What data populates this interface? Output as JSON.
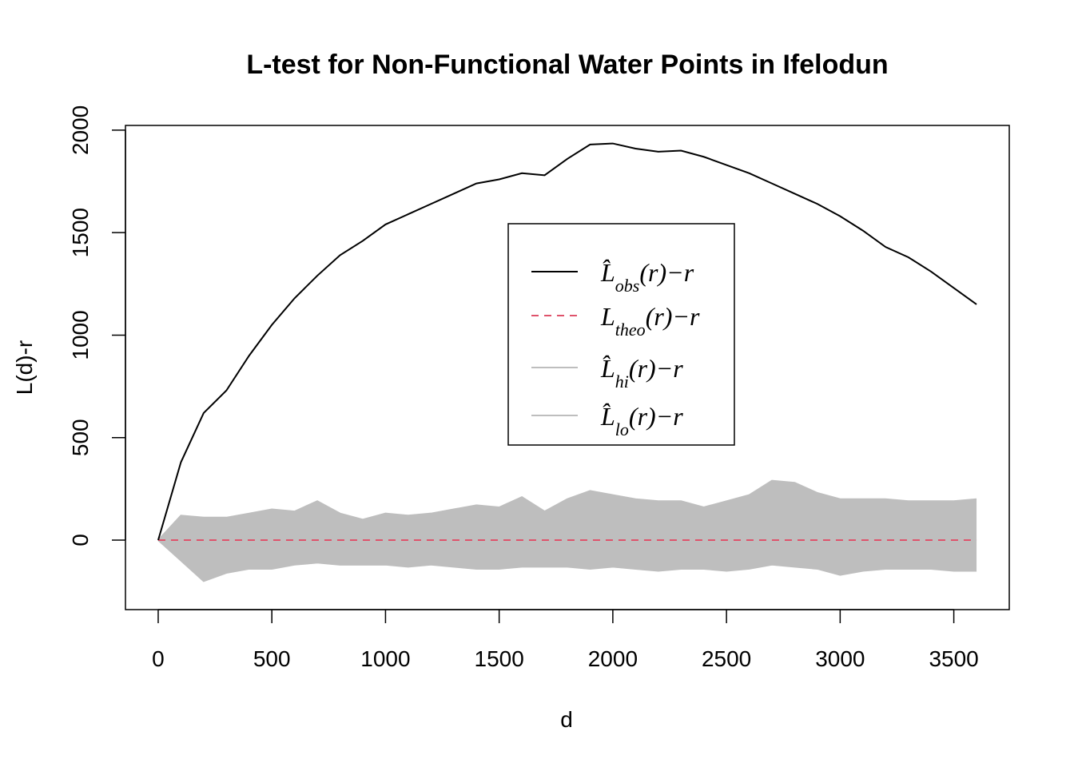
{
  "chart_data": {
    "type": "line",
    "title": "L-test for Non-Functional Water Points in Ifelodun",
    "x_label": "d",
    "y_label": "L(d)-r",
    "x": [
      0,
      100,
      200,
      300,
      400,
      500,
      600,
      700,
      800,
      900,
      1000,
      1100,
      1200,
      1300,
      1400,
      1500,
      1600,
      1700,
      1800,
      1900,
      2000,
      2100,
      2200,
      2300,
      2400,
      2500,
      2600,
      2700,
      2800,
      2900,
      3000,
      3100,
      3200,
      3300,
      3400,
      3500,
      3600
    ],
    "series": [
      {
        "name": "L̂obs(r)−r",
        "color": "#000000",
        "dash": "solid",
        "values": [
          0,
          380,
          620,
          730,
          900,
          1050,
          1180,
          1290,
          1390,
          1460,
          1540,
          1590,
          1640,
          1690,
          1740,
          1760,
          1790,
          1780,
          1860,
          1930,
          1935,
          1910,
          1895,
          1900,
          1870,
          1830,
          1790,
          1740,
          1690,
          1640,
          1580,
          1510,
          1430,
          1380,
          1310,
          1230,
          1150
        ]
      },
      {
        "name": "Ltheo(r)−r",
        "color": "#DF536B",
        "dash": "dashed",
        "values": [
          0,
          0,
          0,
          0,
          0,
          0,
          0,
          0,
          0,
          0,
          0,
          0,
          0,
          0,
          0,
          0,
          0,
          0,
          0,
          0,
          0,
          0,
          0,
          0,
          0,
          0,
          0,
          0,
          0,
          0,
          0,
          0,
          0,
          0,
          0,
          0,
          0
        ]
      },
      {
        "name": "L̂hi(r)−r",
        "color": "#BEBEBE",
        "dash": "solid",
        "area": true,
        "values": [
          0,
          120,
          110,
          110,
          130,
          150,
          140,
          190,
          130,
          100,
          130,
          120,
          130,
          150,
          170,
          160,
          210,
          140,
          200,
          240,
          220,
          200,
          190,
          190,
          160,
          190,
          220,
          290,
          280,
          230,
          200,
          200,
          200,
          190,
          190,
          190,
          200
        ]
      },
      {
        "name": "L̂lo(r)−r",
        "color": "#BEBEBE",
        "dash": "solid",
        "area": true,
        "values": [
          0,
          -100,
          -200,
          -160,
          -140,
          -140,
          -120,
          -110,
          -120,
          -120,
          -120,
          -130,
          -120,
          -130,
          -140,
          -140,
          -130,
          -130,
          -130,
          -140,
          -130,
          -140,
          -150,
          -140,
          -140,
          -150,
          -140,
          -120,
          -130,
          -140,
          -170,
          -150,
          -140,
          -140,
          -140,
          -150,
          -150
        ]
      }
    ],
    "xlim": [
      -144,
      3744
    ],
    "xticks": [
      0,
      500,
      1000,
      1500,
      2000,
      2500,
      3000,
      3500
    ],
    "ylim": [
      -339,
      2023
    ],
    "yticks": [
      0,
      500,
      1000,
      1500,
      2000
    ],
    "grid": false,
    "legend": "top"
  }
}
